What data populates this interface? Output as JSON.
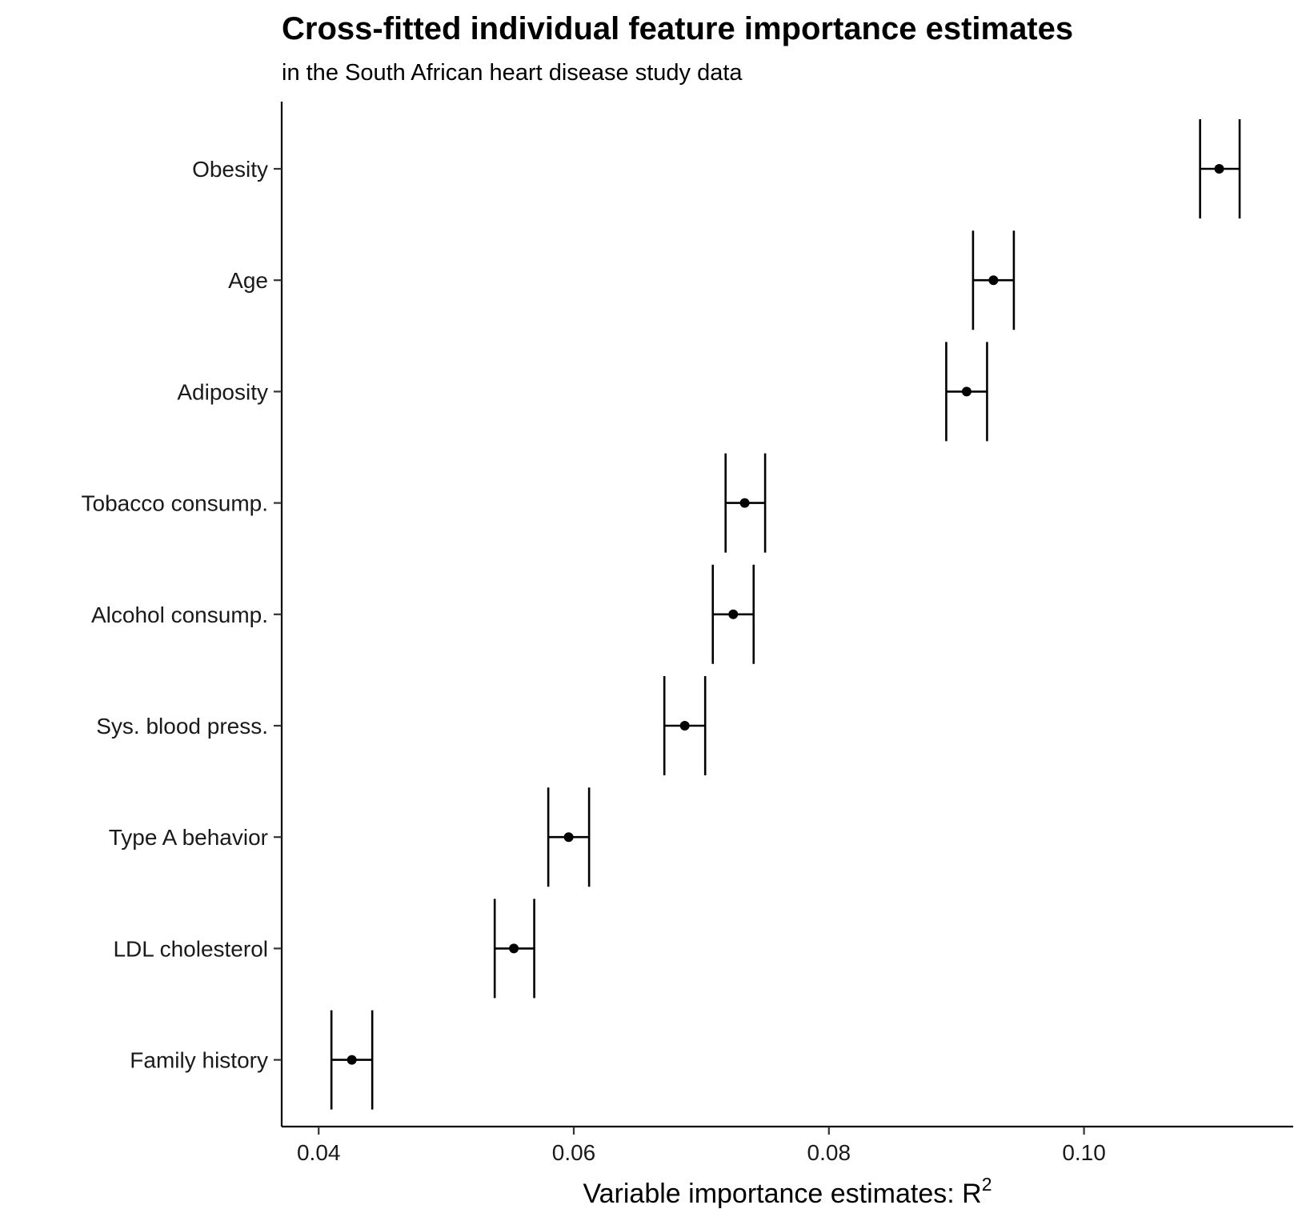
{
  "chart_data": {
    "type": "scatter",
    "title": "Cross-fitted individual feature importance estimates",
    "subtitle": "in the South African heart disease study data",
    "xlabel": "Variable importance estimates: R",
    "xlabel_superscript": "2",
    "ylabel": "",
    "xlim": [
      0.0371,
      0.1164
    ],
    "x_ticks": [
      0.04,
      0.06,
      0.08,
      0.1
    ],
    "x_tick_labels": [
      "0.04",
      "0.06",
      "0.08",
      "0.10"
    ],
    "grid": false,
    "legend": "none",
    "colors": {
      "points": "#000000",
      "lines": "#000000",
      "axis": "#000000"
    },
    "points": [
      {
        "label": "Obesity",
        "estimate": 0.1106,
        "lower": 0.1091,
        "upper": 0.1122
      },
      {
        "label": "Age",
        "estimate": 0.0929,
        "lower": 0.0913,
        "upper": 0.0945
      },
      {
        "label": "Adiposity",
        "estimate": 0.0908,
        "lower": 0.0892,
        "upper": 0.0924
      },
      {
        "label": "Tobacco consump.",
        "estimate": 0.0734,
        "lower": 0.0719,
        "upper": 0.075
      },
      {
        "label": "Alcohol consump.",
        "estimate": 0.0725,
        "lower": 0.0709,
        "upper": 0.0741
      },
      {
        "label": "Sys. blood press.",
        "estimate": 0.0687,
        "lower": 0.0671,
        "upper": 0.0703
      },
      {
        "label": "Type A behavior",
        "estimate": 0.0596,
        "lower": 0.058,
        "upper": 0.0612
      },
      {
        "label": "LDL cholesterol",
        "estimate": 0.0553,
        "lower": 0.0538,
        "upper": 0.0569
      },
      {
        "label": "Family history",
        "estimate": 0.0426,
        "lower": 0.041,
        "upper": 0.0442
      }
    ]
  }
}
